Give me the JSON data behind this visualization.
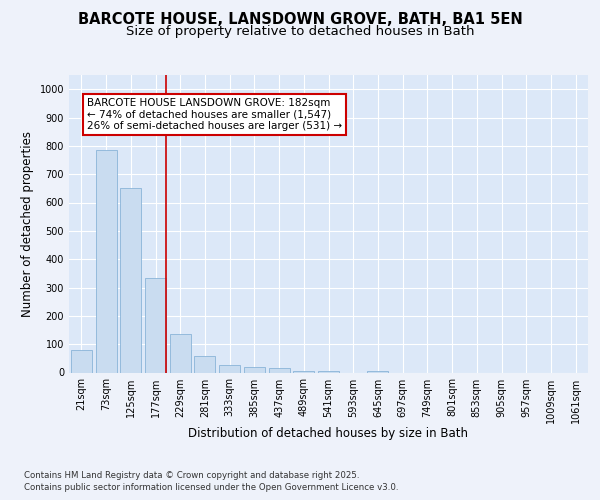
{
  "title": "BARCOTE HOUSE, LANSDOWN GROVE, BATH, BA1 5EN",
  "subtitle": "Size of property relative to detached houses in Bath",
  "xlabel": "Distribution of detached houses by size in Bath",
  "ylabel": "Number of detached properties",
  "bar_labels": [
    "21sqm",
    "73sqm",
    "125sqm",
    "177sqm",
    "229sqm",
    "281sqm",
    "333sqm",
    "385sqm",
    "437sqm",
    "489sqm",
    "541sqm",
    "593sqm",
    "645sqm",
    "697sqm",
    "749sqm",
    "801sqm",
    "853sqm",
    "905sqm",
    "957sqm",
    "1009sqm",
    "1061sqm"
  ],
  "bar_values": [
    80,
    785,
    650,
    335,
    135,
    60,
    25,
    20,
    15,
    5,
    5,
    0,
    5,
    0,
    0,
    0,
    0,
    0,
    0,
    0,
    0
  ],
  "bar_color": "#c9dcf0",
  "bar_edge_color": "#8ab4d8",
  "annotation_text": "BARCOTE HOUSE LANSDOWN GROVE: 182sqm\n← 74% of detached houses are smaller (1,547)\n26% of semi-detached houses are larger (531) →",
  "annotation_box_color": "#ffffff",
  "annotation_box_edge": "#cc0000",
  "property_line_color": "#cc0000",
  "background_color": "#eef2fa",
  "plot_bg_color": "#dce8f8",
  "ylim": [
    0,
    1050
  ],
  "yticks": [
    0,
    100,
    200,
    300,
    400,
    500,
    600,
    700,
    800,
    900,
    1000
  ],
  "footer_line1": "Contains HM Land Registry data © Crown copyright and database right 2025.",
  "footer_line2": "Contains public sector information licensed under the Open Government Licence v3.0.",
  "grid_color": "#ffffff",
  "title_fontsize": 10.5,
  "subtitle_fontsize": 9.5,
  "tick_fontsize": 7,
  "axis_label_fontsize": 8.5,
  "footer_fontsize": 6.2,
  "annotation_fontsize": 7.5
}
